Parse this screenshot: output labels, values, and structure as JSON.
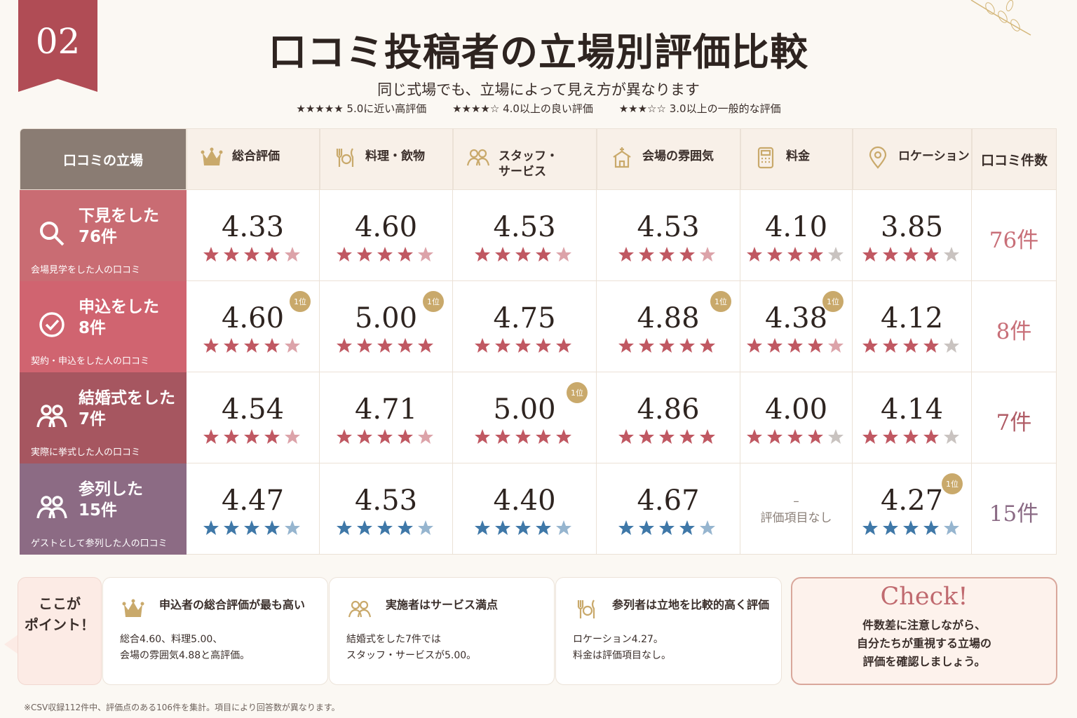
{
  "badge_number": "02",
  "title": "口コミ投稿者の立場別評価比較",
  "subtitle": "同じ式場でも、立場によって見え方が異なります",
  "legend": [
    "★★★★★ 5.0に近い高評価",
    "★★★★☆ 4.0以上の良い評価",
    "★★★☆☆ 3.0以上の一般的な評価"
  ],
  "colors": {
    "pink": "#c05862",
    "blue": "#3f78a8",
    "gold": "#c9a96b",
    "gray": "#c9c3c0"
  },
  "header": {
    "first": "口コミの立場",
    "count": "口コミ件数",
    "columns": [
      {
        "label": "総合評価",
        "icon": "crown-icon"
      },
      {
        "label": "料理・飲物",
        "icon": "cutlery-icon"
      },
      {
        "label": "スタッフ・\nサービス",
        "icon": "people-icon"
      },
      {
        "label": "会場の雰囲気",
        "icon": "chapel-icon"
      },
      {
        "label": "料金",
        "icon": "calculator-icon"
      },
      {
        "label": "ロケーション",
        "icon": "location-pin-icon"
      }
    ]
  },
  "chart_data": {
    "type": "table",
    "columns": [
      "総合評価",
      "料理・飲物",
      "スタッフ・サービス",
      "会場の雰囲気",
      "料金",
      "ロケーション",
      "口コミ件数"
    ],
    "rows": [
      {
        "title": "下見をした",
        "count_label": "76件",
        "note": "会場見学をした人の口コミ",
        "icon": "search-icon",
        "values": [
          4.33,
          4.6,
          4.53,
          4.53,
          4.1,
          3.85
        ],
        "display": [
          "4.33",
          "4.60",
          "4.53",
          "4.53",
          "4.10",
          "3.85"
        ],
        "rank1": [
          false,
          false,
          false,
          false,
          false,
          false
        ],
        "count": "76件"
      },
      {
        "title": "申込をした",
        "count_label": "8件",
        "note": "契約・申込をした人の口コミ",
        "icon": "check-circle-icon",
        "values": [
          4.6,
          5.0,
          4.75,
          4.88,
          4.38,
          4.12
        ],
        "display": [
          "4.60",
          "5.00",
          "4.75",
          "4.88",
          "4.38",
          "4.12"
        ],
        "rank1": [
          true,
          true,
          false,
          true,
          true,
          false
        ],
        "count": "8件"
      },
      {
        "title": "結婚式をした",
        "count_label": "7件",
        "note": "実際に挙式した人の口コミ",
        "icon": "couple-icon",
        "values": [
          4.54,
          4.71,
          5.0,
          4.86,
          4.0,
          4.14
        ],
        "display": [
          "4.54",
          "4.71",
          "5.00",
          "4.86",
          "4.00",
          "4.14"
        ],
        "rank1": [
          false,
          false,
          true,
          false,
          false,
          false
        ],
        "count": "7件"
      },
      {
        "title": "参列した",
        "count_label": "15件",
        "note": "ゲストとして参列した人の口コミ",
        "icon": "guests-icon",
        "values": [
          4.47,
          4.53,
          4.4,
          4.67,
          null,
          4.27
        ],
        "display": [
          "4.47",
          "4.53",
          "4.40",
          "4.67",
          "",
          "4.27"
        ],
        "rank1": [
          false,
          false,
          false,
          false,
          false,
          true
        ],
        "count": "15件"
      }
    ],
    "rank_label": "1位",
    "na_dash": "–",
    "na_label": "評価項目なし",
    "max": 5
  },
  "point_label": "ここが\nポイント！",
  "points": [
    {
      "title": "申込者の総合評価が最も高い",
      "text": "総合4.60、料理5.00、\n会場の雰囲気4.88と高評価。",
      "icon": "crown-icon"
    },
    {
      "title": "実施者はサービス満点",
      "text": "結婚式をした7件では\nスタッフ・サービスが5.00。",
      "icon": "people-icon"
    },
    {
      "title": "参列者は立地を比較的高く評価",
      "text": "ロケーション4.27。\n料金は評価項目なし。",
      "icon": "cutlery-icon"
    }
  ],
  "check": {
    "title": "Check!",
    "text": "件数差に注意しながら、\n自分たちが重視する立場の\n評価を確認しましょう。"
  },
  "footnote": "※CSV収録112件中、評価点のある106件を集計。項目により回答数が異なります。"
}
